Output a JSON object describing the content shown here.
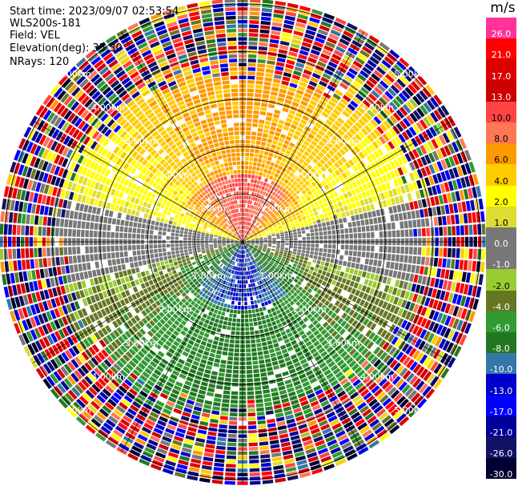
{
  "header": {
    "start_time": "Start time: 2023/09/07 02:53:54",
    "instrument": "WLS200s-181",
    "field": "Field: VEL",
    "elevation": "Elevation(deg): 35.30",
    "nrays": "NRays: 120"
  },
  "colorbar": {
    "title": "m/s",
    "labels": [
      "26.0",
      "21.0",
      "17.0",
      "13.0",
      "10.0",
      "8.0",
      "6.0",
      "4.0",
      "2.0",
      "1.0",
      "0.0",
      "-1.0",
      "-2.0",
      "-4.0",
      "-6.0",
      "-8.0",
      "-10.0",
      "-13.0",
      "-17.0",
      "-21.0",
      "-26.0",
      "-30.0"
    ],
    "colors": [
      "#ff3399",
      "#ff0000",
      "#dd0000",
      "#cc0000",
      "#ff4444",
      "#ff7755",
      "#ff9900",
      "#ffcc00",
      "#ffff00",
      "#dddd33",
      "#777777",
      "#777777",
      "#99cc33",
      "#667722",
      "#339933",
      "#227722",
      "#3377aa",
      "#0000cc",
      "#0000ff",
      "#000099",
      "#111166",
      "#000033"
    ]
  },
  "chart_data": {
    "type": "heatmap",
    "projection": "polar PPI",
    "field": "VEL",
    "units": "m/s",
    "nrays": 120,
    "elevation_deg": 35.3,
    "range_rings_km": [
      1.0,
      2.0,
      3.0,
      4.0,
      5.0
    ],
    "ring_labels": [
      "1.00km",
      "2.00km",
      "3.00km",
      "4.00km",
      "5.00km"
    ],
    "color_levels": [
      -30.0,
      -26.0,
      -21.0,
      -17.0,
      -13.0,
      -10.0,
      -8.0,
      -6.0,
      -4.0,
      -2.0,
      -1.0,
      0.0,
      1.0,
      2.0,
      4.0,
      6.0,
      8.0,
      10.0,
      13.0,
      17.0,
      21.0,
      26.0
    ],
    "max_range_km": 5.1
  }
}
